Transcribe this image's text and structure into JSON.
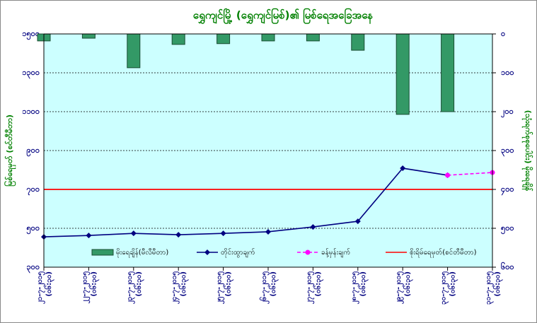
{
  "chart_data": {
    "type": "combo",
    "title": "ရွှေကျင်မြို့ (ရွှေကျင်မြစ်)၏ မြစ်ရေအခြေအနေ",
    "y_label": "မြစ်ရေမှတ် (စင်တီမီတာ)",
    "y2_label": "(သုံးရက်စုစုပေါင်း) မိုးရေချိန်",
    "categories": [
      "၂၁-၇-၂၀၁၅",
      "၂၂-၇-၂၀၁၅",
      "၂၃-၇-၂၀၁၅",
      "၂၄-၇-၂၀၁၅",
      "၂၅-၇-၂၀၁၅",
      "၂၆-၇-၂၀၁၅",
      "၂၇-၇-၂၀၁၅",
      "၂၈-၇-၂၀၁၅",
      "၂၉-၇-၂၀၁၅",
      "၃၀-၇-၂၀၁၅",
      "၃၁-၇-၂၀၁၅"
    ],
    "category_times": [
      "(၀၆:၃၀)",
      "(၀၆:၃၀)",
      "(၀၆:၃၀)",
      "(၀၆:၃၀)",
      "(၀၆:၃၀)",
      "(၀၆:၃၀)",
      "(၀၆:၃၀)",
      "(၀၆:၃၀)",
      "(၀၆:၃၀)",
      "(၀၆:၃၀)",
      "(၀၆:၃၀)"
    ],
    "series": [
      {
        "name": "မိုးရေချိန်(မီလီမီတာ)",
        "kind": "bar",
        "axis": "y2",
        "color": "#339966",
        "values": [
          18,
          11,
          87,
          27,
          25,
          18,
          18,
          42,
          207,
          200,
          null
        ]
      },
      {
        "name": "တိုင်းထွာချက်",
        "kind": "line",
        "color": "#000080",
        "values": [
          456,
          463,
          474,
          467,
          474,
          482,
          507,
          536,
          809,
          773,
          null
        ]
      },
      {
        "name": "ခန့်မှန်းချက်",
        "kind": "line",
        "dashed": true,
        "color": "#ff00ff",
        "values": [
          null,
          null,
          null,
          null,
          null,
          null,
          null,
          null,
          null,
          773,
          787
        ]
      },
      {
        "name": "စိုးရိမ်ရေမှတ်(စင်တီမီတာ)",
        "kind": "hline",
        "color": "#ff0000",
        "value": 700
      }
    ],
    "ylim": [
      300,
      1500
    ],
    "yticks": [
      {
        "value": 1500,
        "label": "၁၅၀၀"
      },
      {
        "value": 1300,
        "label": "၁၃၀၀"
      },
      {
        "value": 1100,
        "label": "၁၁၀၀"
      },
      {
        "value": 900,
        "label": "၉၀၀"
      },
      {
        "value": 700,
        "label": "၇၀၀"
      },
      {
        "value": 500,
        "label": "၅၀၀"
      },
      {
        "value": 300,
        "label": "၃၀၀"
      }
    ],
    "y2lim": [
      0,
      600
    ],
    "y2_inverted": true,
    "y2ticks": [
      {
        "value": 0,
        "label": "၀"
      },
      {
        "value": 100,
        "label": "၁၀၀"
      },
      {
        "value": 200,
        "label": "၂၀၀"
      },
      {
        "value": 300,
        "label": "၃၀၀"
      },
      {
        "value": 400,
        "label": "၄၀၀"
      },
      {
        "value": 500,
        "label": "၅၀၀"
      },
      {
        "value": 600,
        "label": "၆၀၀"
      }
    ],
    "grid": true
  }
}
